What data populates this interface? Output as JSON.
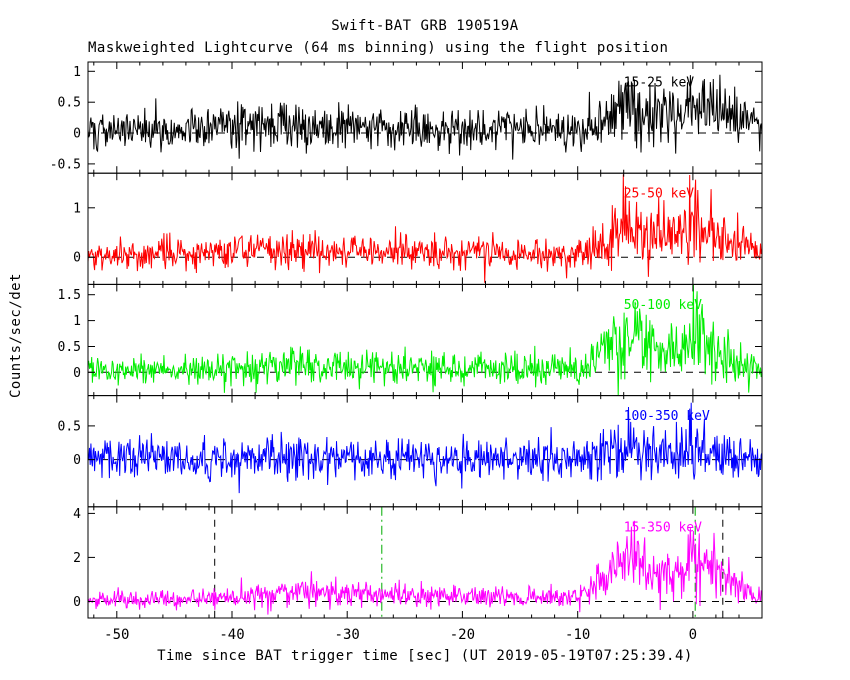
{
  "header": {
    "title": "Swift-BAT GRB 190519A",
    "subtitle": "Maskweighted Lightcurve (64 ms binning) using the flight position"
  },
  "axes": {
    "xlabel": "Time since BAT trigger time [sec] (UT 2019-05-19T07:25:39.4)",
    "ylabel": "Counts/sec/det"
  },
  "chart_data": {
    "type": "line",
    "title": "Swift-BAT GRB 190519A",
    "subtitle": "Maskweighted Lightcurve (64 ms binning) using the flight position",
    "xlabel": "Time since BAT trigger time [sec] (UT 2019-05-19T07:25:39.4)",
    "ylabel": "Counts/sec/det",
    "xlim": [
      -52.5,
      6
    ],
    "xticks": [
      -50,
      -40,
      -30,
      -20,
      -10,
      0
    ],
    "xtick_labels": [
      "-50",
      "-40",
      "-30",
      "-20",
      "-10",
      "0"
    ],
    "minor_x_step": 2,
    "bin_sec": 0.064,
    "background": "#ffffff",
    "grid": false,
    "legend_position": "inside-top-right",
    "envelope_t": [
      -52.5,
      -46,
      -42,
      -38,
      -35,
      -32,
      -28,
      -24,
      -20,
      -16,
      -12,
      -9.5,
      -8,
      -6.5,
      -5.5,
      -4.5,
      -3,
      -1.5,
      -0.5,
      0,
      0.7,
      1.5,
      2.5,
      3.5,
      4.5,
      6
    ],
    "panels": [
      {
        "label": "15-25 keV",
        "color": "#000000",
        "ylim": [
          -0.65,
          1.15
        ],
        "yticks": [
          -0.5,
          0,
          0.5,
          1
        ],
        "ytick_labels": [
          "-0.5",
          "0",
          "0.5",
          "1"
        ],
        "seed": 101,
        "sigma": 0.13,
        "sigma_scale": 0.45,
        "mean": [
          0.03,
          0.06,
          0.09,
          0.13,
          0.15,
          0.12,
          0.1,
          0.1,
          0.09,
          0.08,
          0.06,
          0.08,
          0.2,
          0.35,
          0.42,
          0.38,
          0.32,
          0.33,
          0.42,
          0.48,
          0.42,
          0.38,
          0.35,
          0.3,
          0.22,
          0.15
        ],
        "vlines": []
      },
      {
        "label": "25-50 keV",
        "color": "#ff0000",
        "ylim": [
          -0.55,
          1.7
        ],
        "yticks": [
          0,
          1
        ],
        "ytick_labels": [
          "0",
          "1"
        ],
        "seed": 102,
        "sigma": 0.13,
        "sigma_scale": 0.4,
        "mean": [
          0.02,
          0.05,
          0.09,
          0.14,
          0.17,
          0.14,
          0.12,
          0.1,
          0.09,
          0.07,
          0.05,
          0.08,
          0.28,
          0.5,
          0.62,
          0.52,
          0.42,
          0.45,
          0.6,
          0.8,
          0.6,
          0.48,
          0.4,
          0.3,
          0.18,
          0.1
        ],
        "vlines": []
      },
      {
        "label": "50-100 keV",
        "color": "#00ee00",
        "ylim": [
          -0.45,
          1.7
        ],
        "yticks": [
          0,
          0.5,
          1,
          1.5
        ],
        "ytick_labels": [
          "0",
          "0.5",
          "1",
          "1.5"
        ],
        "seed": 103,
        "sigma": 0.12,
        "sigma_scale": 0.45,
        "mean": [
          0.02,
          0.04,
          0.06,
          0.1,
          0.12,
          0.1,
          0.08,
          0.08,
          0.07,
          0.06,
          0.05,
          0.08,
          0.3,
          0.55,
          0.72,
          0.58,
          0.45,
          0.48,
          0.6,
          0.75,
          0.62,
          0.45,
          0.32,
          0.25,
          0.15,
          0.08
        ],
        "vlines": []
      },
      {
        "label": "100-350 keV",
        "color": "#0000ff",
        "ylim": [
          -0.7,
          0.95
        ],
        "yticks": [
          0,
          0.5
        ],
        "ytick_labels": [
          "0",
          "0.5"
        ],
        "seed": 104,
        "sigma": 0.14,
        "sigma_scale": 0.65,
        "mean": [
          0.0,
          0.01,
          0.01,
          0.02,
          0.03,
          0.02,
          0.02,
          0.02,
          0.02,
          0.02,
          0.01,
          0.03,
          0.08,
          0.14,
          0.18,
          0.15,
          0.12,
          0.12,
          0.15,
          0.18,
          0.14,
          0.1,
          0.07,
          0.04,
          0.02,
          0.01
        ],
        "vlines": []
      },
      {
        "label": "15-350 keV",
        "color": "#ff00ff",
        "ylim": [
          -0.75,
          4.3
        ],
        "yticks": [
          0,
          2,
          4
        ],
        "ytick_labels": [
          "0",
          "2",
          "4"
        ],
        "seed": 105,
        "sigma": 0.17,
        "sigma_scale": 0.35,
        "mean": [
          0.06,
          0.12,
          0.2,
          0.35,
          0.45,
          0.38,
          0.3,
          0.28,
          0.25,
          0.2,
          0.15,
          0.25,
          0.85,
          1.5,
          1.85,
          1.55,
          1.3,
          1.4,
          1.8,
          2.4,
          1.85,
          1.45,
          1.15,
          0.9,
          0.55,
          0.25
        ],
        "vlines": [
          {
            "t": -41.5,
            "color": "#000000",
            "dash": "7,6",
            "name": "t90-start-marker"
          },
          {
            "t": 2.6,
            "color": "#000000",
            "dash": "7,6",
            "name": "t90-end-marker"
          },
          {
            "t": -27.0,
            "color": "#00aa00",
            "dash": "9,4,2,4",
            "name": "slew-marker-1"
          },
          {
            "t": 0.2,
            "color": "#00aa00",
            "dash": "9,4,2,4",
            "name": "slew-marker-2"
          }
        ]
      }
    ]
  }
}
